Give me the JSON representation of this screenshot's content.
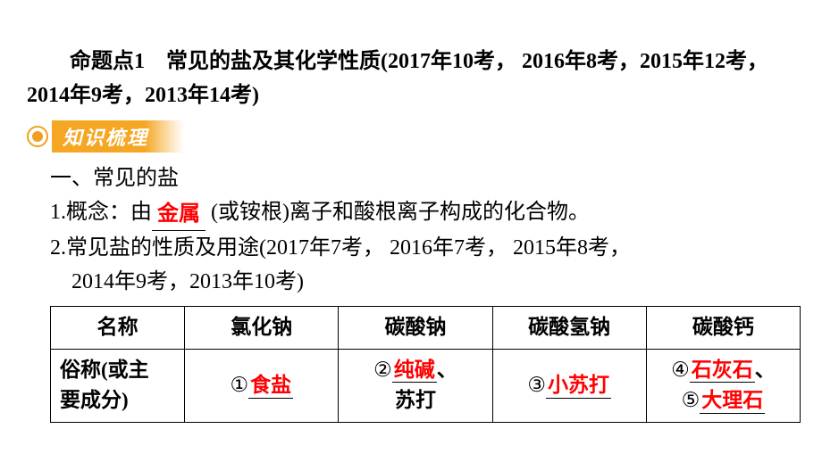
{
  "topic": {
    "title": "命题点1　常见的盐及其化学性质(2017年10考， 2016年8考，2015年12考，2014年9考，2013年14考)"
  },
  "section_header": {
    "label": "知识梳理"
  },
  "subsection1": {
    "title": "一、常见的盐"
  },
  "concept": {
    "prefix": "1.概念：由",
    "blank1": "金属",
    "suffix": " (或铵根)离子和酸根离子构成的化合物。"
  },
  "usage": {
    "line1": "2.常见盐的性质及用途(2017年7考， 2016年7考， 2015年8考，",
    "line2": "2014年9考，2013年10考)"
  },
  "table": {
    "header": {
      "col1": "名称",
      "col2": "氯化钠",
      "col3": "碳酸钠",
      "col4": "碳酸氢钠",
      "col5": "碳酸钙"
    },
    "row1": {
      "label_line1": "俗称(或主",
      "label_line2": "要成分)",
      "cell1": {
        "num": "①",
        "answer": "食盐"
      },
      "cell2": {
        "num": "②",
        "answer": "纯碱",
        "extra": "、",
        "line2": "苏打"
      },
      "cell3": {
        "num": "③",
        "answer": "小苏打"
      },
      "cell4": {
        "num1": "④",
        "answer1": "石灰石",
        "extra1": "、",
        "num2": "⑤",
        "answer2": "大理石"
      }
    }
  },
  "colors": {
    "heading_black": "#000000",
    "answer_red": "#ff0000",
    "accent_orange": "#f5a623",
    "white": "#ffffff",
    "border": "#000000"
  },
  "typography": {
    "body_fontsize": 24,
    "table_fontsize": 23,
    "font_family": "SimSun"
  }
}
